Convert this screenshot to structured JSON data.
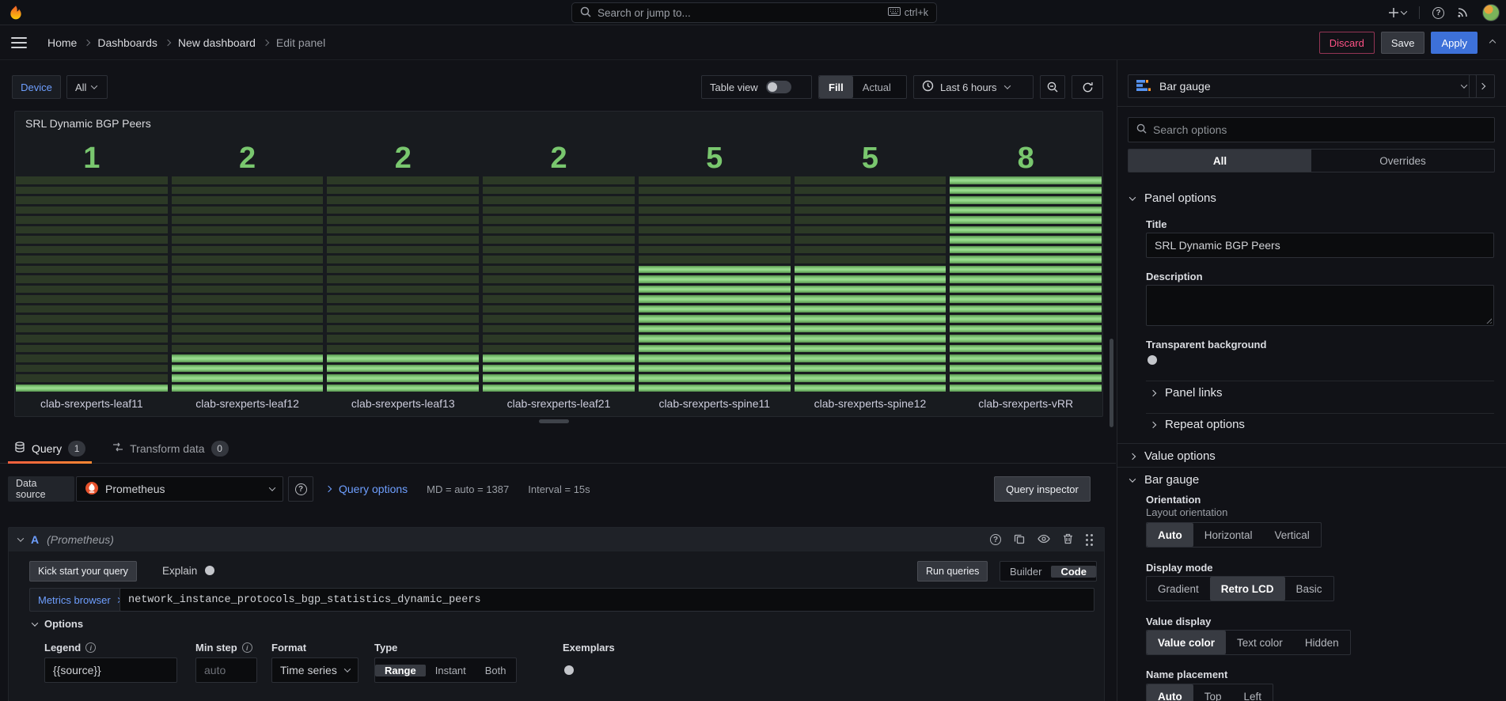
{
  "topnav": {
    "search_placeholder": "Search or jump to...",
    "search_shortcut": "ctrl+k"
  },
  "breadcrumbs": {
    "items": [
      {
        "label": "Home"
      },
      {
        "label": "Dashboards"
      },
      {
        "label": "New dashboard"
      },
      {
        "label": "Edit panel"
      }
    ],
    "discard_label": "Discard",
    "save_label": "Save",
    "apply_label": "Apply"
  },
  "toolbar": {
    "device_label": "Device",
    "device_value": "All",
    "table_view_label": "Table view",
    "view_modes": [
      "Fill",
      "Actual"
    ],
    "active_view_mode": "Fill",
    "time_range_label": "Last 6 hours"
  },
  "panel": {
    "title": "SRL Dynamic BGP Peers"
  },
  "chart_data": {
    "type": "bar",
    "subtype": "retro-lcd-bar-gauge",
    "orientation": "vertical",
    "title": "SRL Dynamic BGP Peers",
    "categories": [
      "clab-srexperts-leaf11",
      "clab-srexperts-leaf12",
      "clab-srexperts-leaf13",
      "clab-srexperts-leaf21",
      "clab-srexperts-spine11",
      "clab-srexperts-spine12",
      "clab-srexperts-vRR"
    ],
    "values": [
      1,
      2,
      2,
      2,
      5,
      5,
      8
    ],
    "min": 1,
    "max": 8,
    "segments_total": 22,
    "lit_segments": [
      1,
      4,
      4,
      4,
      13,
      13,
      22
    ],
    "colors": {
      "value_text": "#79c76e",
      "segment_lit": "#84cc7a",
      "segment_unlit": "#2c3926"
    }
  },
  "editor_tabs": {
    "query_label": "Query",
    "query_count": "1",
    "transform_label": "Transform data",
    "transform_count": "0"
  },
  "datasource_row": {
    "label": "Data source",
    "value": "Prometheus",
    "query_options_label": "Query options",
    "md_text": "MD = auto = 1387",
    "interval_text": "Interval = 15s",
    "query_inspector_label": "Query inspector"
  },
  "query_a": {
    "ref_id": "A",
    "datasource_name": "(Prometheus)",
    "kick_start_label": "Kick start your query",
    "explain_label": "Explain",
    "run_queries_label": "Run queries",
    "editor_modes": [
      "Builder",
      "Code"
    ],
    "active_editor_mode": "Code",
    "metrics_browser_label": "Metrics browser",
    "query_expression": "network_instance_protocols_bgp_statistics_dynamic_peers",
    "options": {
      "header": "Options",
      "legend_label": "Legend",
      "legend_value": "{{source}}",
      "min_step_label": "Min step",
      "min_step_placeholder": "auto",
      "format_label": "Format",
      "format_value": "Time series",
      "type_label": "Type",
      "type_options": [
        "Range",
        "Instant",
        "Both"
      ],
      "active_type": "Range",
      "exemplars_label": "Exemplars"
    }
  },
  "sidebar": {
    "viz_picker_label": "Bar gauge",
    "search_placeholder": "Search options",
    "tabs": {
      "all": "All",
      "overrides": "Overrides"
    },
    "panel_options": {
      "header": "Panel options",
      "title_label": "Title",
      "title_value": "SRL Dynamic BGP Peers",
      "description_label": "Description",
      "transparent_label": "Transparent background",
      "panel_links_label": "Panel links",
      "repeat_options_label": "Repeat options"
    },
    "value_options_header": "Value options",
    "bar_gauge_section": {
      "header": "Bar gauge",
      "orientation_label": "Orientation",
      "orientation_desc": "Layout orientation",
      "orientation_options": [
        "Auto",
        "Horizontal",
        "Vertical"
      ],
      "orientation_active": "Auto",
      "display_mode_label": "Display mode",
      "display_mode_options": [
        "Gradient",
        "Retro LCD",
        "Basic"
      ],
      "display_mode_active": "Retro LCD",
      "value_display_label": "Value display",
      "value_display_options": [
        "Value color",
        "Text color",
        "Hidden"
      ],
      "value_display_active": "Value color",
      "name_placement_label": "Name placement",
      "name_placement_options": [
        "Auto",
        "Top",
        "Left"
      ],
      "name_placement_active": "Auto"
    }
  }
}
